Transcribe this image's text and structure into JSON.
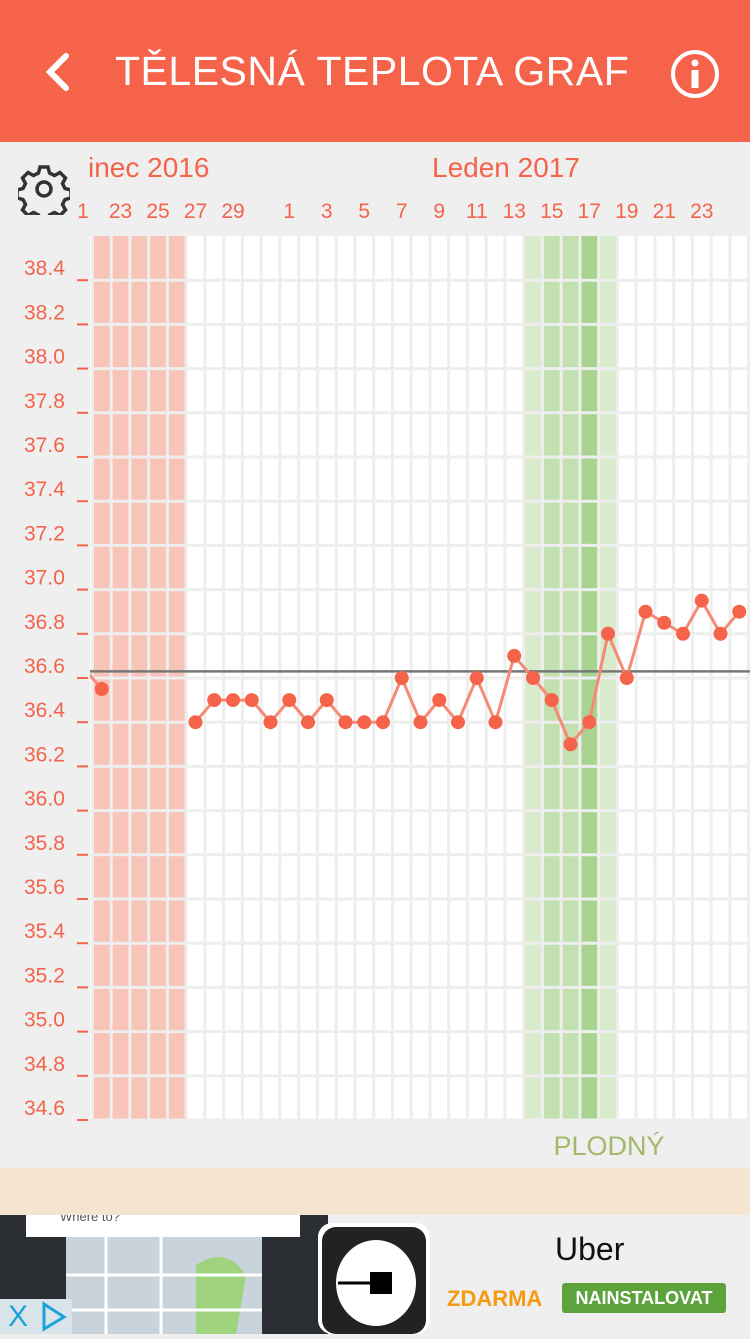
{
  "header": {
    "title": "TĚLESNÁ TEPLOTA GRAF",
    "back_icon": "chevron-left-icon",
    "info_icon": "info-circle-icon",
    "color": "#f4634a"
  },
  "settings_icon": "gear-icon",
  "chart_data": {
    "type": "line",
    "months": [
      {
        "label": "inec 2016"
      },
      {
        "label": "Leden 2017"
      }
    ],
    "x": [
      "Dec 21",
      "Dec 22",
      "Dec 27",
      "Dec 28",
      "Dec 29",
      "Dec 30",
      "Dec 31",
      "Jan 1",
      "Jan 2",
      "Jan 3",
      "Jan 4",
      "Jan 5",
      "Jan 6",
      "Jan 7",
      "Jan 8",
      "Jan 9",
      "Jan 10",
      "Jan 11",
      "Jan 12",
      "Jan 13",
      "Jan 14",
      "Jan 15",
      "Jan 16",
      "Jan 17",
      "Jan 18",
      "Jan 19",
      "Jan 20",
      "Jan 21",
      "Jan 22",
      "Jan 23",
      "Jan 24",
      "Jan 25"
    ],
    "series": [
      {
        "values": [
          36.65,
          36.55,
          36.4,
          36.5,
          36.5,
          36.5,
          36.4,
          36.5,
          36.4,
          36.5,
          36.4,
          36.4,
          36.4,
          36.6,
          36.4,
          36.5,
          36.4,
          36.6,
          36.4,
          36.7,
          36.6,
          36.5,
          36.3,
          36.4,
          36.8,
          36.6,
          36.9,
          36.85,
          36.8,
          36.95,
          36.8,
          36.9
        ],
        "color": "#f4634a"
      }
    ],
    "x_tick_labels": [
      "1",
      "23",
      "25",
      "27",
      "29",
      "1",
      "3",
      "5",
      "7",
      "9",
      "11",
      "13",
      "15",
      "17",
      "19",
      "21",
      "23"
    ],
    "y_tick_labels": [
      "38.4",
      "38.2",
      "38.0",
      "37.8",
      "37.6",
      "37.4",
      "37.2",
      "37.0",
      "36.8",
      "36.6",
      "36.4",
      "36.2",
      "36.0",
      "35.8",
      "35.6",
      "35.4",
      "35.2",
      "35.0",
      "34.8",
      "34.6"
    ],
    "ylim": [
      34.6,
      38.4
    ],
    "coverline": 36.63,
    "bands": [
      {
        "type": "period",
        "from": "Dec 22",
        "to": "Dec 26",
        "color": "#f8c4b8"
      },
      {
        "type": "fertile",
        "from": "Jan 14",
        "to": "Jan 18",
        "color": "#d8ebcc"
      },
      {
        "type": "fertile-high",
        "from": "Jan 15",
        "to": "Jan 17",
        "color": "#c2e0b0"
      },
      {
        "type": "ovulation",
        "from": "Jan 17",
        "to": "Jan 17",
        "color": "#a9d490"
      }
    ],
    "band_label": "PLODNÝ",
    "grid": true
  },
  "ad": {
    "search_text": "Where to?",
    "app_name": "Uber",
    "price": "ZDARMA",
    "install": "NAINSTALOVAT",
    "close": "X"
  }
}
